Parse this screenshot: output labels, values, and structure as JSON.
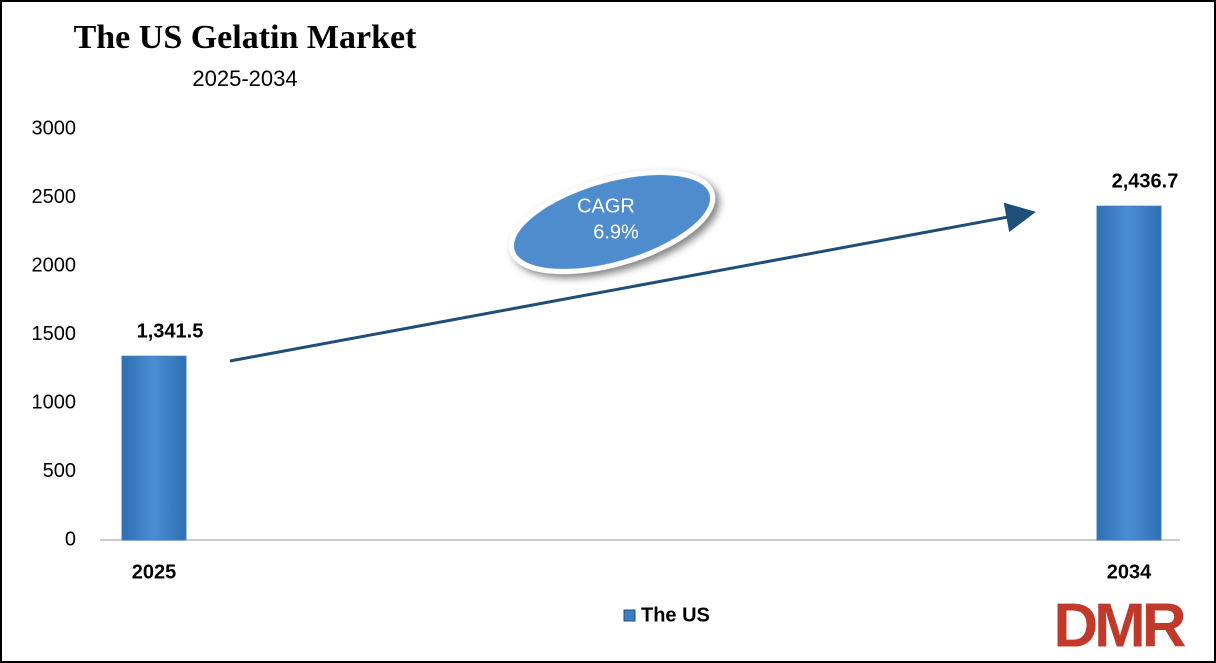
{
  "chart_data": {
    "type": "bar",
    "title": "The US Gelatin Market",
    "subtitle": "2025-2034",
    "categories": [
      "2025",
      "2034"
    ],
    "series": [
      {
        "name": "The US",
        "color": "#3a7dc4",
        "values": [
          1341.5,
          2436.7
        ],
        "value_labels": [
          "1,341.5",
          "2,436.7"
        ]
      }
    ],
    "ylim": [
      0,
      3000
    ],
    "yticks": [
      0,
      500,
      1000,
      1500,
      2000,
      2500,
      3000
    ],
    "annotation": [
      "CAGR",
      "6.9%"
    ],
    "logo": "DMR",
    "legend": "bottom",
    "grid": false
  }
}
